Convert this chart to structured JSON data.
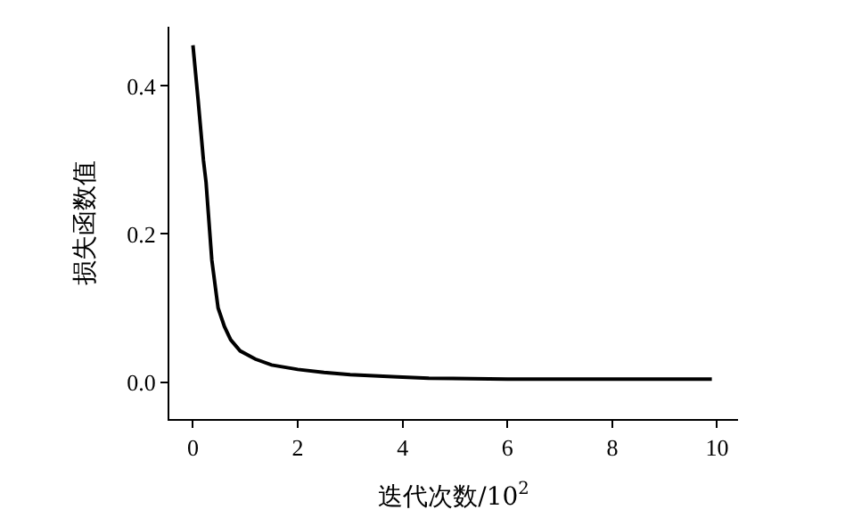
{
  "chart_data": {
    "type": "line",
    "xlabel": "迭代次数/10$^{2}$",
    "ylabel": "损失函数值",
    "x": [
      0,
      0.1,
      0.2,
      0.25,
      0.36,
      0.48,
      0.6,
      0.72,
      0.9,
      1.19,
      1.5,
      2.0,
      2.5,
      3.0,
      3.9,
      4.5,
      6,
      8,
      9.9
    ],
    "series": [
      {
        "color": "#000000",
        "values": [
          0.455,
          0.38,
          0.3,
          0.27,
          0.165,
          0.1,
          0.075,
          0.057,
          0.042,
          0.031,
          0.023,
          0.017,
          0.013,
          0.01,
          0.007,
          0.005,
          0.004,
          0.004,
          0.004
        ]
      }
    ],
    "xlim": [
      -0.45,
      10.4
    ],
    "xticks": [
      0,
      2,
      4,
      6,
      8,
      10
    ],
    "ylim": [
      -0.05,
      0.48
    ],
    "yticks": [
      {
        "value": 0,
        "label": "0.0"
      },
      {
        "value": 0.2,
        "label": "0.2"
      },
      {
        "value": 0.4,
        "label": "0.4"
      }
    ],
    "marker": "none",
    "line_style": "solid"
  }
}
